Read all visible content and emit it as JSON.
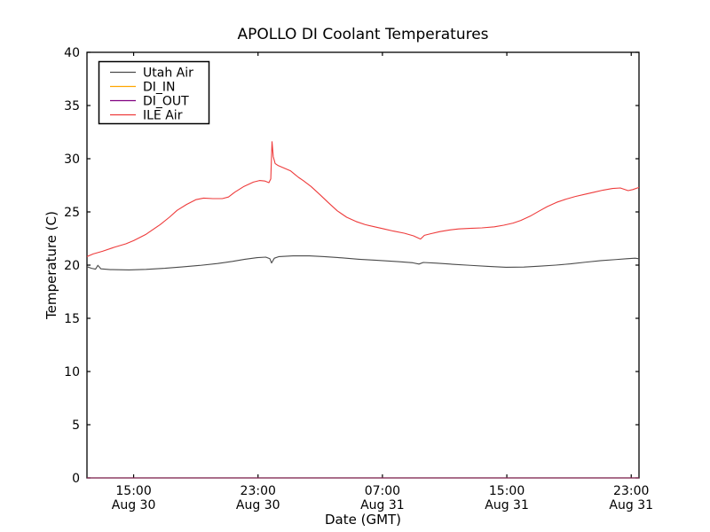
{
  "figure": {
    "background": "#ffffff",
    "spine_color": "#000000",
    "tick_color": "#000000"
  },
  "chart_data": {
    "type": "line",
    "title": "APOLLO DI Coolant Temperatures",
    "xlabel": "Date (GMT)",
    "ylabel": "Temperature (C)",
    "grid": false,
    "legend_position": "upper-left",
    "x_range_hours": [
      12.0,
      47.5
    ],
    "y_range": [
      0,
      40
    ],
    "y_ticks": [
      0,
      5,
      10,
      15,
      20,
      25,
      30,
      35,
      40
    ],
    "x_ticks": [
      {
        "hour": 15,
        "time": "15:00",
        "date": "Aug 30"
      },
      {
        "hour": 23,
        "time": "23:00",
        "date": "Aug 30"
      },
      {
        "hour": 31,
        "time": "07:00",
        "date": "Aug 31"
      },
      {
        "hour": 39,
        "time": "15:00",
        "date": "Aug 31"
      },
      {
        "hour": 47,
        "time": "23:00",
        "date": "Aug 31"
      }
    ],
    "series": [
      {
        "name": "Utah Air",
        "color": "#4a4a4a",
        "points": [
          [
            12.0,
            19.85
          ],
          [
            12.3,
            19.7
          ],
          [
            12.55,
            19.62
          ],
          [
            12.7,
            19.98
          ],
          [
            12.9,
            19.65
          ],
          [
            13.5,
            19.58
          ],
          [
            14.7,
            19.55
          ],
          [
            15.8,
            19.6
          ],
          [
            17.0,
            19.7
          ],
          [
            18.1,
            19.83
          ],
          [
            19.25,
            19.97
          ],
          [
            20.4,
            20.15
          ],
          [
            21.35,
            20.35
          ],
          [
            22.15,
            20.55
          ],
          [
            22.95,
            20.7
          ],
          [
            23.5,
            20.75
          ],
          [
            23.76,
            20.6
          ],
          [
            23.87,
            20.2
          ],
          [
            24.05,
            20.65
          ],
          [
            24.35,
            20.8
          ],
          [
            25.25,
            20.87
          ],
          [
            26.3,
            20.87
          ],
          [
            27.25,
            20.8
          ],
          [
            28.4,
            20.68
          ],
          [
            29.5,
            20.55
          ],
          [
            30.65,
            20.45
          ],
          [
            32.0,
            20.33
          ],
          [
            32.95,
            20.22
          ],
          [
            33.35,
            20.1
          ],
          [
            33.63,
            20.25
          ],
          [
            34.5,
            20.18
          ],
          [
            35.5,
            20.08
          ],
          [
            36.65,
            19.98
          ],
          [
            37.8,
            19.88
          ],
          [
            38.95,
            19.8
          ],
          [
            40.1,
            19.82
          ],
          [
            41.1,
            19.9
          ],
          [
            42.15,
            20.0
          ],
          [
            43.1,
            20.12
          ],
          [
            44.1,
            20.28
          ],
          [
            45.05,
            20.42
          ],
          [
            46.0,
            20.52
          ],
          [
            46.7,
            20.6
          ],
          [
            47.25,
            20.65
          ],
          [
            47.5,
            20.6
          ]
        ]
      },
      {
        "name": "DI_IN",
        "color": "#ffa500",
        "points": [
          [
            12.0,
            0
          ],
          [
            47.5,
            0
          ]
        ]
      },
      {
        "name": "DI_OUT",
        "color": "#800080",
        "points": [
          [
            12.0,
            0
          ],
          [
            47.5,
            0
          ]
        ]
      },
      {
        "name": "ILE Air",
        "color": "#ee3b3b",
        "points": [
          [
            12.0,
            20.8
          ],
          [
            12.4,
            21.05
          ],
          [
            13.0,
            21.3
          ],
          [
            13.8,
            21.7
          ],
          [
            14.5,
            22.0
          ],
          [
            15.0,
            22.3
          ],
          [
            15.8,
            22.9
          ],
          [
            16.7,
            23.8
          ],
          [
            17.3,
            24.5
          ],
          [
            17.8,
            25.15
          ],
          [
            18.4,
            25.7
          ],
          [
            19.0,
            26.15
          ],
          [
            19.5,
            26.3
          ],
          [
            20.1,
            26.25
          ],
          [
            20.7,
            26.25
          ],
          [
            21.1,
            26.4
          ],
          [
            21.5,
            26.85
          ],
          [
            22.1,
            27.4
          ],
          [
            22.7,
            27.8
          ],
          [
            23.1,
            27.95
          ],
          [
            23.45,
            27.9
          ],
          [
            23.7,
            27.75
          ],
          [
            23.82,
            28.1
          ],
          [
            23.9,
            31.6
          ],
          [
            23.98,
            30.2
          ],
          [
            24.1,
            29.55
          ],
          [
            24.3,
            29.35
          ],
          [
            24.7,
            29.1
          ],
          [
            25.1,
            28.85
          ],
          [
            25.35,
            28.55
          ],
          [
            25.6,
            28.25
          ],
          [
            25.9,
            27.95
          ],
          [
            26.4,
            27.4
          ],
          [
            27.0,
            26.6
          ],
          [
            27.5,
            25.9
          ],
          [
            28.1,
            25.1
          ],
          [
            28.7,
            24.5
          ],
          [
            29.3,
            24.1
          ],
          [
            29.9,
            23.8
          ],
          [
            30.5,
            23.6
          ],
          [
            31.1,
            23.4
          ],
          [
            31.7,
            23.2
          ],
          [
            32.4,
            23.0
          ],
          [
            33.0,
            22.75
          ],
          [
            33.45,
            22.45
          ],
          [
            33.7,
            22.8
          ],
          [
            34.1,
            22.95
          ],
          [
            34.7,
            23.15
          ],
          [
            35.3,
            23.3
          ],
          [
            35.9,
            23.4
          ],
          [
            36.6,
            23.45
          ],
          [
            37.4,
            23.5
          ],
          [
            38.2,
            23.6
          ],
          [
            38.8,
            23.75
          ],
          [
            39.4,
            23.95
          ],
          [
            39.9,
            24.2
          ],
          [
            40.5,
            24.6
          ],
          [
            41.1,
            25.1
          ],
          [
            41.6,
            25.5
          ],
          [
            42.2,
            25.9
          ],
          [
            42.8,
            26.2
          ],
          [
            43.4,
            26.45
          ],
          [
            44.0,
            26.65
          ],
          [
            44.6,
            26.85
          ],
          [
            45.2,
            27.05
          ],
          [
            45.8,
            27.2
          ],
          [
            46.3,
            27.25
          ],
          [
            46.8,
            27.0
          ],
          [
            47.1,
            27.1
          ],
          [
            47.5,
            27.3
          ]
        ]
      }
    ]
  }
}
